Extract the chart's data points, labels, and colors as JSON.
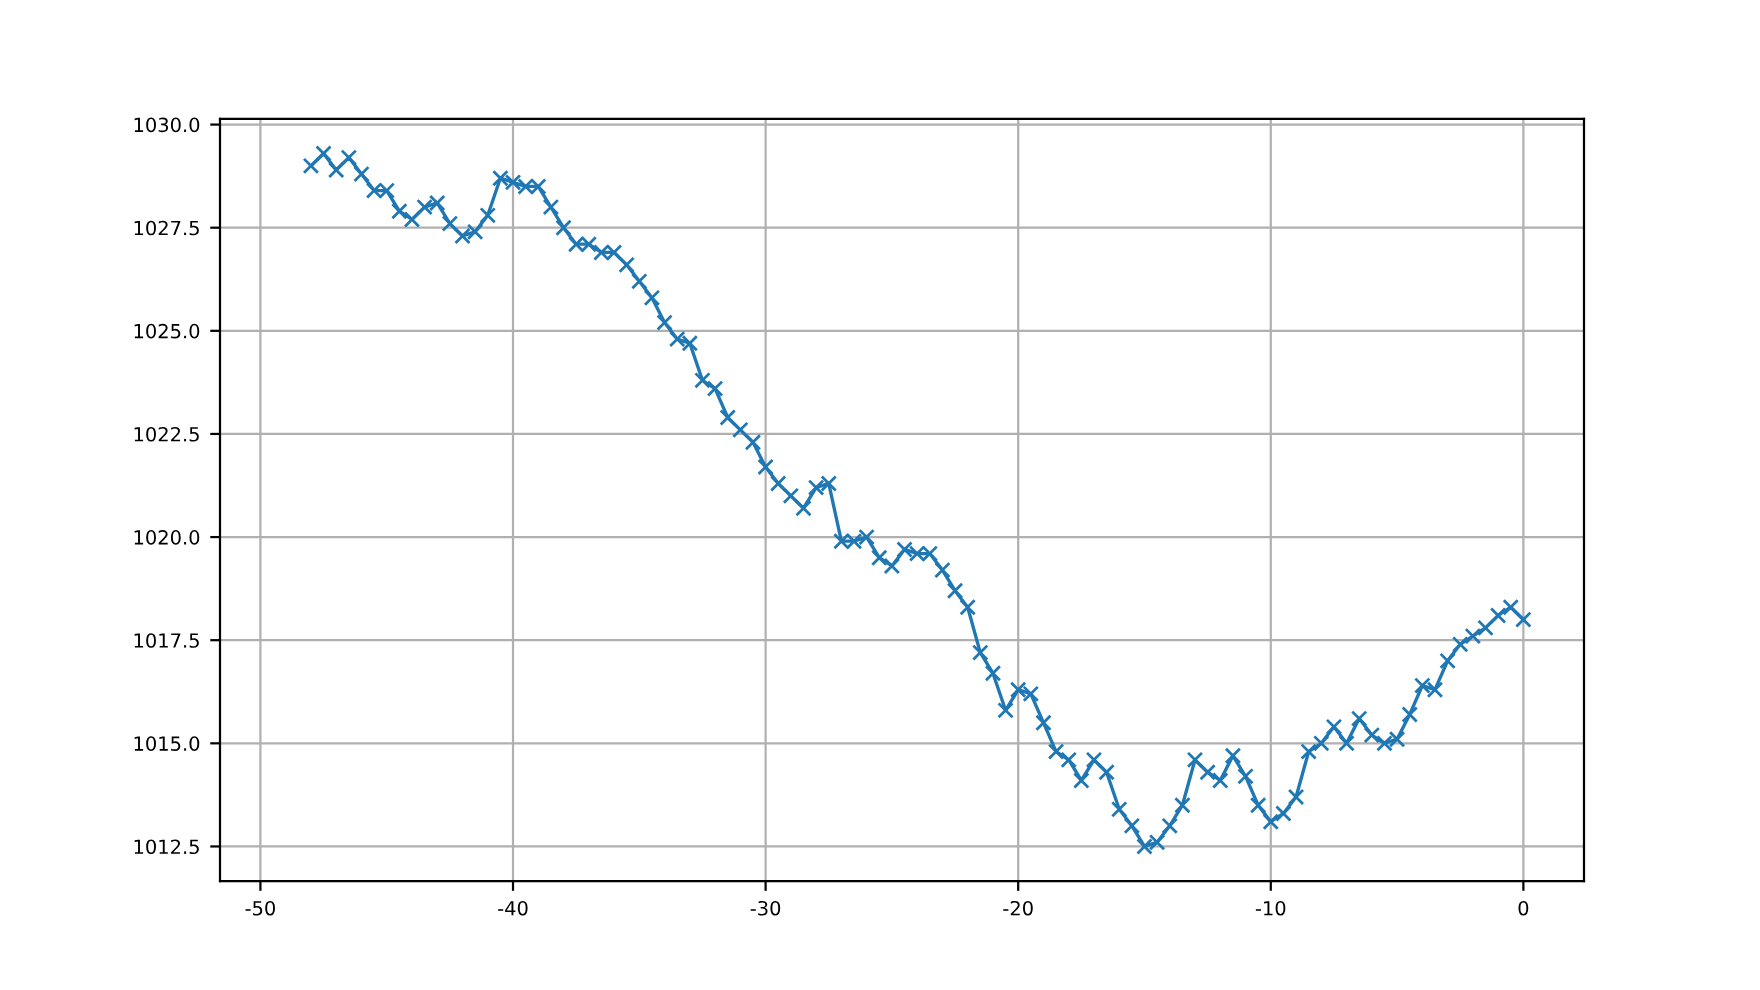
{
  "chart_data": {
    "type": "line",
    "marker": "cross",
    "grid": true,
    "xlim": [
      -51.6,
      2.4
    ],
    "xticks": [
      -50,
      -40,
      -30,
      -20,
      -10,
      0
    ],
    "ylim": [
      1011.66,
      1030.14
    ],
    "yticks": [
      {
        "value": 1012.5,
        "label": "1012.5"
      },
      {
        "value": 1015,
        "label": "1015.0"
      },
      {
        "value": 1017.5,
        "label": "1017.5"
      },
      {
        "value": 1020,
        "label": "1020.0"
      },
      {
        "value": 1022.5,
        "label": "1022.5"
      },
      {
        "value": 1025,
        "label": "1025.0"
      },
      {
        "value": 1027.5,
        "label": "1027.5"
      },
      {
        "value": 1030,
        "label": "1030.0"
      }
    ],
    "x": [
      -48,
      -47.5,
      -47,
      -46.5,
      -46,
      -45.5,
      -45,
      -44.5,
      -44,
      -43.5,
      -43,
      -42.5,
      -42,
      -41.5,
      -41,
      -40.5,
      -40,
      -39.5,
      -39,
      -38.5,
      -38,
      -37.5,
      -37,
      -36.5,
      -36,
      -35.5,
      -35,
      -34.5,
      -34,
      -33.5,
      -33,
      -32.5,
      -32,
      -31.5,
      -31,
      -30.5,
      -30,
      -29.5,
      -29,
      -28.5,
      -28,
      -27.5,
      -27,
      -26.5,
      -26,
      -25.5,
      -25,
      -24.5,
      -24,
      -23.5,
      -23,
      -22.5,
      -22,
      -21.5,
      -21,
      -20.5,
      -20,
      -19.5,
      -19,
      -18.5,
      -18,
      -17.5,
      -17,
      -16.5,
      -16,
      -15.5,
      -15,
      -14.5,
      -14,
      -13.5,
      -13,
      -12.5,
      -12,
      -11.5,
      -11,
      -10.5,
      -10,
      -9.5,
      -9,
      -8.5,
      -8,
      -7.5,
      -7,
      -6.5,
      -6,
      -5.5,
      -5,
      -4.5,
      -4,
      -3.5,
      -3,
      -2.5,
      -2,
      -1.5,
      -1,
      -0.5,
      0
    ],
    "series": [
      {
        "color": "#1f77b4",
        "values": [
          1029.0,
          1029.3,
          1028.9,
          1029.2,
          1028.8,
          1028.4,
          1028.4,
          1027.9,
          1027.7,
          1028.0,
          1028.1,
          1027.6,
          1027.3,
          1027.4,
          1027.8,
          1028.7,
          1028.6,
          1028.5,
          1028.5,
          1028.0,
          1027.5,
          1027.1,
          1027.1,
          1026.9,
          1026.9,
          1026.6,
          1026.2,
          1025.8,
          1025.2,
          1024.8,
          1024.7,
          1023.8,
          1023.6,
          1022.9,
          1022.6,
          1022.3,
          1021.7,
          1021.3,
          1021.0,
          1020.7,
          1021.2,
          1021.3,
          1019.9,
          1019.9,
          1020.0,
          1019.5,
          1019.3,
          1019.7,
          1019.6,
          1019.6,
          1019.2,
          1018.7,
          1018.3,
          1017.2,
          1016.7,
          1015.8,
          1016.3,
          1016.2,
          1015.5,
          1014.8,
          1014.6,
          1014.1,
          1014.6,
          1014.3,
          1013.4,
          1013.0,
          1012.5,
          1012.6,
          1013.0,
          1013.5,
          1014.6,
          1014.3,
          1014.1,
          1014.7,
          1014.2,
          1013.5,
          1013.1,
          1013.3,
          1013.7,
          1014.8,
          1015.0,
          1015.4,
          1015.0,
          1015.6,
          1015.2,
          1015.0,
          1015.1,
          1015.7,
          1016.4,
          1016.3,
          1017.0,
          1017.4,
          1017.6,
          1017.8,
          1018.1,
          1018.3,
          1018.0
        ]
      }
    ]
  }
}
